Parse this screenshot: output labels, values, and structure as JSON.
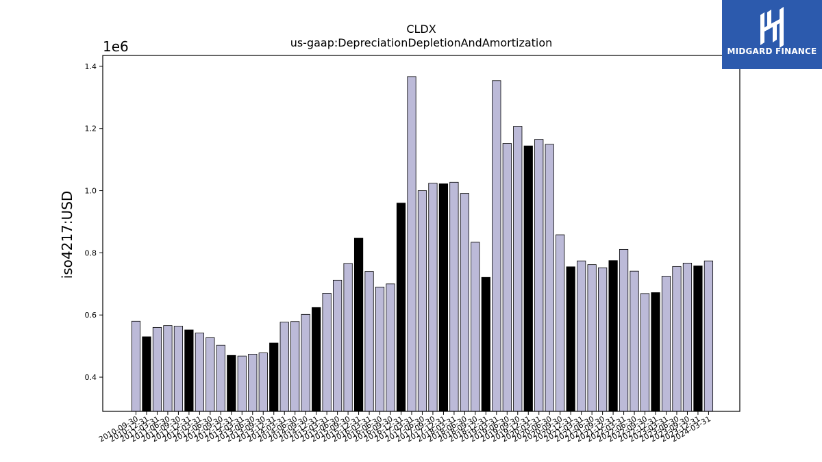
{
  "chart_data": {
    "type": "bar",
    "title": "CLDX",
    "subtitle": "us-gaap:DepreciationDepletionAndAmortization",
    "ylabel": "iso4217:USD",
    "xlabel": "",
    "offset_text": "1e6",
    "ylim": [
      290000,
      1435000
    ],
    "yticks": [
      "0.4",
      "0.6",
      "0.8",
      "1.0",
      "1.2",
      "1.4"
    ],
    "ytick_values": [
      400000,
      600000,
      800000,
      1000000,
      1200000,
      1400000
    ],
    "grid": false,
    "colors": {
      "regular": "#bcbad8",
      "highlight": "#000000",
      "edge": "#000000"
    },
    "categories": [
      "2010-09-30",
      "2010-12-31",
      "2011-03-31",
      "2011-06-30",
      "2011-09-30",
      "2011-12-31",
      "2012-03-31",
      "2012-06-30",
      "2012-09-30",
      "2012-12-31",
      "2013-03-31",
      "2013-06-30",
      "2013-09-30",
      "2013-12-31",
      "2014-03-31",
      "2014-06-30",
      "2014-09-30",
      "2014-12-31",
      "2015-03-31",
      "2015-06-30",
      "2015-09-30",
      "2015-12-31",
      "2016-03-31",
      "2016-06-30",
      "2016-09-30",
      "2016-12-31",
      "2017-03-31",
      "2017-06-30",
      "2017-09-30",
      "2017-12-31",
      "2018-03-31",
      "2018-06-30",
      "2018-09-30",
      "2018-12-31",
      "2019-03-31",
      "2019-06-30",
      "2019-09-30",
      "2019-12-31",
      "2020-03-31",
      "2020-06-30",
      "2020-09-30",
      "2020-12-31",
      "2021-03-31",
      "2021-06-30",
      "2021-09-30",
      "2021-12-31",
      "2022-03-31",
      "2022-06-30",
      "2022-09-30",
      "2022-12-31",
      "2023-03-31",
      "2023-06-30",
      "2023-09-30",
      "2023-12-31",
      "2024-03-31"
    ],
    "values": [
      580000,
      530000,
      560000,
      566000,
      564000,
      552000,
      542000,
      527000,
      503000,
      470000,
      468000,
      474000,
      478000,
      510000,
      577000,
      579000,
      602000,
      624000,
      670000,
      712000,
      766000,
      847000,
      740000,
      690000,
      700000,
      960000,
      1367000,
      1000000,
      1024000,
      1022000,
      1027000,
      991000,
      834000,
      721000,
      1354000,
      1152000,
      1207000,
      1144000,
      1165000,
      1149000,
      858000,
      755000,
      774000,
      762000,
      752000,
      775000,
      811000,
      741000,
      669000,
      672000,
      725000,
      756000,
      767000,
      758000,
      774000
    ],
    "highlight": [
      false,
      true,
      false,
      false,
      false,
      true,
      false,
      false,
      false,
      true,
      false,
      false,
      false,
      true,
      false,
      false,
      false,
      true,
      false,
      false,
      false,
      true,
      false,
      false,
      false,
      true,
      false,
      false,
      false,
      true,
      false,
      false,
      false,
      true,
      false,
      false,
      false,
      true,
      false,
      false,
      false,
      true,
      false,
      false,
      false,
      true,
      false,
      false,
      false,
      true,
      false,
      false,
      false,
      true,
      false
    ]
  },
  "logo": {
    "text": "MIDGARD FINANCE"
  }
}
